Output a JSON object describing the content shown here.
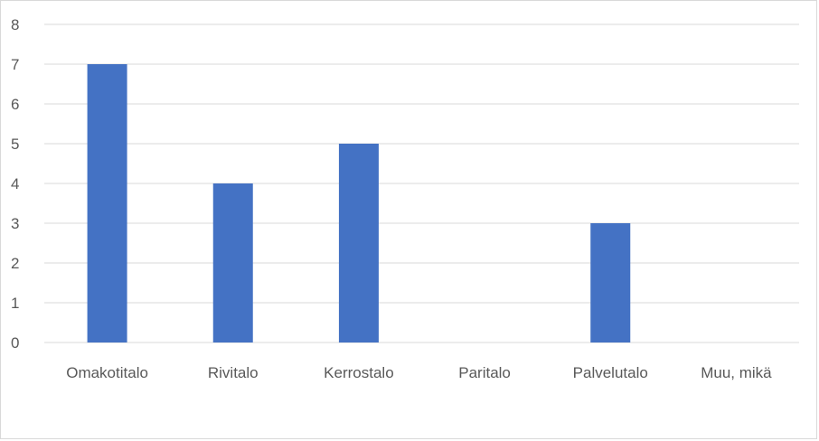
{
  "chart_data": {
    "type": "bar",
    "categories": [
      "Omakotitalo",
      "Rivitalo",
      "Kerrostalo",
      "Paritalo",
      "Palvelutalo",
      "Muu, mikä"
    ],
    "values": [
      7,
      4,
      5,
      0,
      3,
      0
    ],
    "ylim": [
      0,
      8
    ],
    "yticks": [
      "0",
      "1",
      "2",
      "3",
      "4",
      "5",
      "6",
      "7",
      "8"
    ],
    "grid": true,
    "bar_color": "#4472C4",
    "grid_color": "#d9d9d9"
  }
}
